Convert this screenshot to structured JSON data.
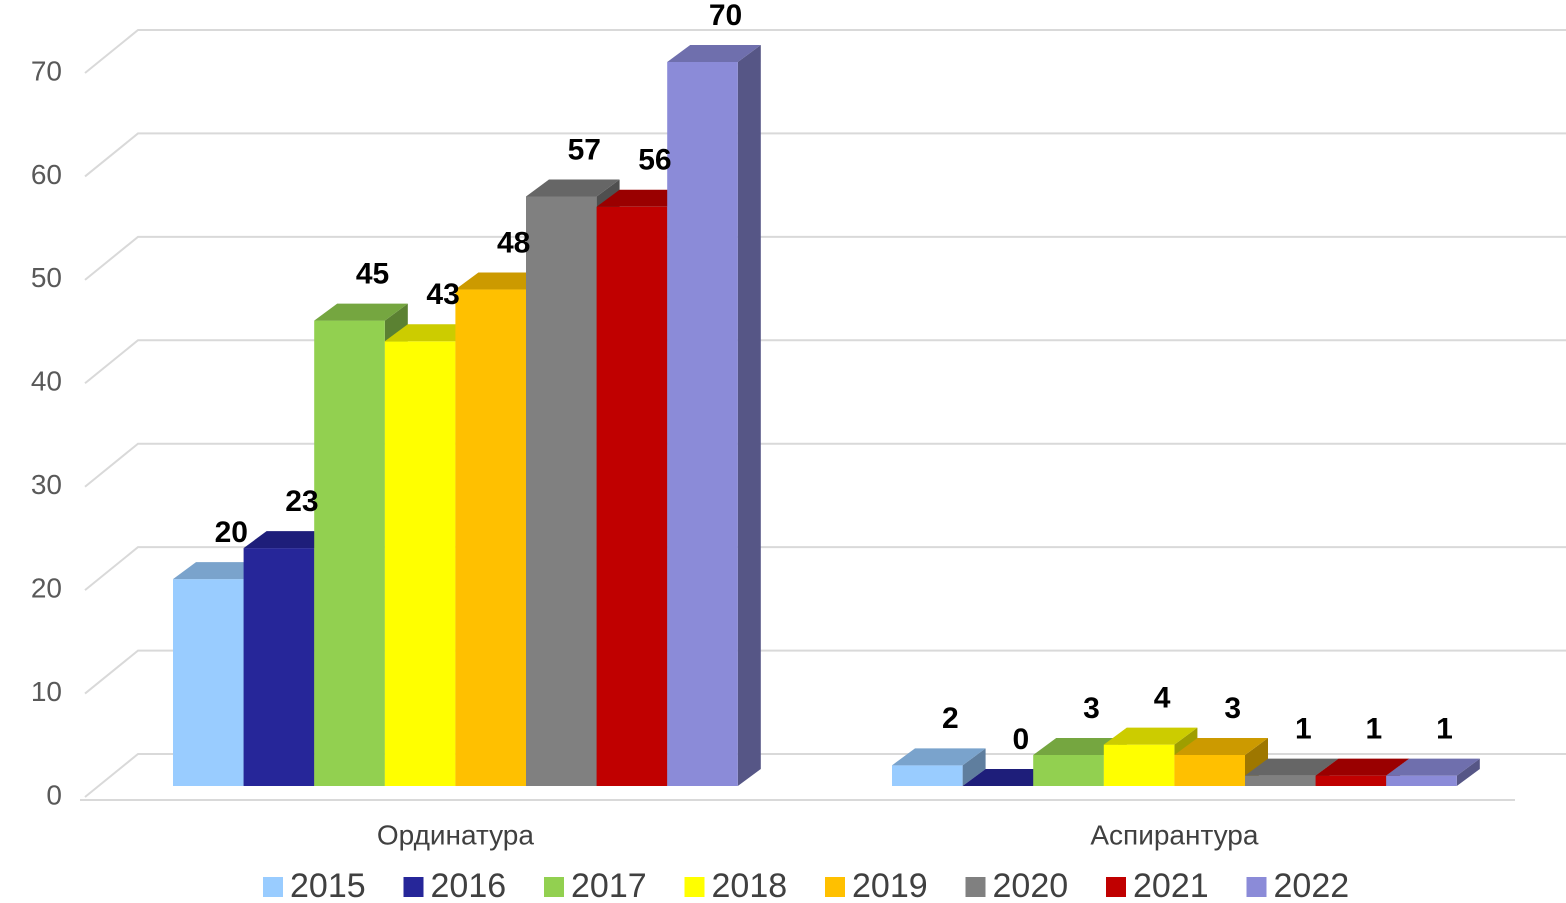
{
  "chart_data": {
    "type": "bar3d",
    "categories": [
      "Ординатура",
      "Аспирантура"
    ],
    "series": [
      {
        "name": "2015",
        "color": "#99ccff",
        "values": [
          20,
          2
        ]
      },
      {
        "name": "2016",
        "color": "#262699",
        "values": [
          23,
          0
        ]
      },
      {
        "name": "2017",
        "color": "#92d050",
        "values": [
          45,
          3
        ]
      },
      {
        "name": "2018",
        "color": "#ffff00",
        "values": [
          43,
          4
        ]
      },
      {
        "name": "2019",
        "color": "#ffc000",
        "values": [
          48,
          3
        ]
      },
      {
        "name": "2020",
        "color": "#808080",
        "values": [
          57,
          1
        ]
      },
      {
        "name": "2021",
        "color": "#c00000",
        "values": [
          56,
          1
        ]
      },
      {
        "name": "2022",
        "color": "#8b8bd8",
        "values": [
          70,
          1
        ]
      }
    ],
    "ylim": [
      0,
      70
    ],
    "yticks": [
      0,
      10,
      20,
      30,
      40,
      50,
      60,
      70
    ],
    "grid": true,
    "legend": "bottom"
  }
}
